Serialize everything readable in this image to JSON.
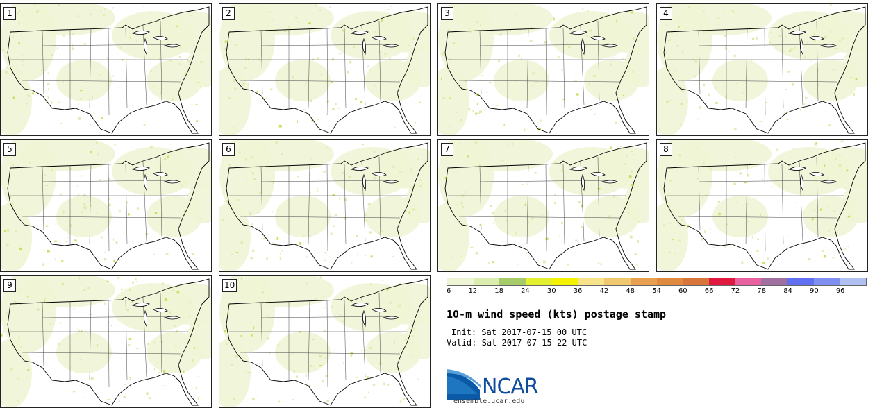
{
  "title": "10-m wind speed (kts) postage stamp",
  "init_label": "Init:",
  "init_value": "Sat 2017-07-15 00 UTC",
  "valid_label": "Valid:",
  "valid_value": "Sat 2017-07-15 22 UTC",
  "logo": {
    "name": "NCAR",
    "url": "ensemble.ucar.edu"
  },
  "panels": [
    "1",
    "2",
    "3",
    "4",
    "5",
    "6",
    "7",
    "8",
    "9",
    "10"
  ],
  "colorbar": {
    "ticks": [
      "6",
      "12",
      "18",
      "24",
      "30",
      "36",
      "42",
      "48",
      "54",
      "60",
      "66",
      "72",
      "78",
      "84",
      "90",
      "96"
    ],
    "colors": [
      "#eef5d4",
      "#dcedb0",
      "#a6cc6a",
      "#e2f030",
      "#f4f200",
      "#f7e48a",
      "#f0c870",
      "#e8a050",
      "#e08a40",
      "#d8753a",
      "#e01840",
      "#e860a0",
      "#a070a0",
      "#6070f0",
      "#8090f0",
      "#b0c0f0"
    ]
  }
}
